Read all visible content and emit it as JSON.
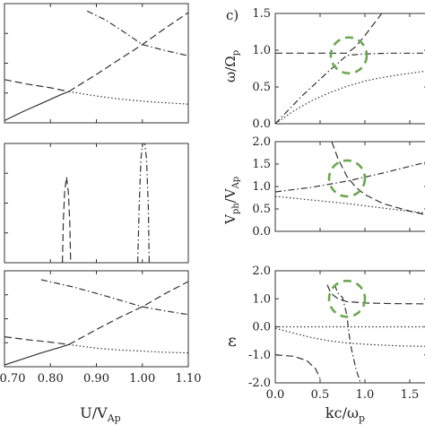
{
  "chart_data": [
    {
      "type": "line",
      "panel": "left-top",
      "xlim": [
        0.7,
        1.1
      ],
      "ylim": [
        0,
        1.6
      ],
      "series": [
        {
          "style": "solid",
          "x": [
            0.7,
            0.74,
            0.78,
            0.82,
            0.84
          ],
          "y": [
            0.03,
            0.15,
            0.26,
            0.37,
            0.42
          ]
        },
        {
          "style": "dotted",
          "x": [
            0.84,
            0.9,
            0.95,
            1.0,
            1.05,
            1.1
          ],
          "y": [
            0.42,
            0.36,
            0.32,
            0.29,
            0.27,
            0.25
          ]
        },
        {
          "style": "dashed",
          "x": [
            0.7,
            0.75,
            0.8,
            0.84
          ],
          "y": [
            0.58,
            0.52,
            0.47,
            0.42
          ]
        },
        {
          "style": "dashed",
          "x": [
            0.84,
            0.9,
            0.95,
            1.0,
            1.05,
            1.1
          ],
          "y": [
            0.42,
            0.65,
            0.85,
            1.05,
            1.27,
            1.48
          ]
        },
        {
          "style": "dashdot",
          "x": [
            0.88,
            0.92,
            0.96,
            1.0
          ],
          "y": [
            1.5,
            1.38,
            1.22,
            1.05
          ]
        },
        {
          "style": "dashdot",
          "x": [
            1.0,
            1.05,
            1.1
          ],
          "y": [
            1.05,
            0.97,
            0.9
          ]
        }
      ]
    },
    {
      "type": "line",
      "panel": "left-middle",
      "xlim": [
        0.7,
        1.1
      ],
      "ylim": [
        0,
        1.6
      ],
      "series": [
        {
          "style": "dashed",
          "x": [
            0.826,
            0.828,
            0.831,
            0.835,
            0.839,
            0.842,
            0.844
          ],
          "y": [
            0.0,
            0.55,
            0.95,
            1.15,
            0.95,
            0.55,
            0.0
          ]
        },
        {
          "style": "dashdot",
          "x": [
            0.99,
            0.993,
            0.997,
            1.003,
            1.009,
            1.013,
            1.015
          ],
          "y": [
            0.0,
            0.75,
            1.4,
            1.7,
            1.4,
            0.75,
            0.0
          ]
        }
      ]
    },
    {
      "type": "line",
      "panel": "left-bottom",
      "xlim": [
        0.7,
        1.1
      ],
      "ylim": [
        0,
        1.6
      ],
      "series": [
        {
          "style": "solid",
          "x": [
            0.7,
            0.74,
            0.78,
            0.82,
            0.84
          ],
          "y": [
            0.03,
            0.13,
            0.23,
            0.32,
            0.37
          ]
        },
        {
          "style": "dotted",
          "x": [
            0.84,
            0.9,
            0.95,
            1.0,
            1.05,
            1.1
          ],
          "y": [
            0.37,
            0.31,
            0.28,
            0.26,
            0.24,
            0.23
          ]
        },
        {
          "style": "dashed",
          "x": [
            0.7,
            0.75,
            0.8,
            0.84
          ],
          "y": [
            0.5,
            0.45,
            0.41,
            0.37
          ]
        },
        {
          "style": "dashed",
          "x": [
            0.84,
            0.9,
            0.95,
            1.0,
            1.05,
            1.1
          ],
          "y": [
            0.37,
            0.62,
            0.82,
            1.0,
            1.22,
            1.42
          ]
        },
        {
          "style": "dashdot",
          "x": [
            0.78,
            0.85,
            0.92,
            1.0
          ],
          "y": [
            1.45,
            1.33,
            1.18,
            1.0
          ]
        },
        {
          "style": "dashdot",
          "x": [
            1.0,
            1.05,
            1.1
          ],
          "y": [
            1.0,
            0.93,
            0.87
          ]
        }
      ]
    },
    {
      "type": "line",
      "panel": "right-top",
      "xlim": [
        0,
        1.7
      ],
      "ylim": [
        0,
        1.5
      ],
      "ylabel": "ω/Ω_p",
      "yticks": [
        "0.0",
        "0.5",
        "1.0",
        "1.5"
      ],
      "series": [
        {
          "style": "dashed",
          "x": [
            0.0,
            0.8,
            0.9,
            1.0,
            1.1,
            1.2
          ],
          "y": [
            0.96,
            0.96,
            1.05,
            1.2,
            1.36,
            1.52
          ]
        },
        {
          "style": "dashdot",
          "x": [
            0.0,
            0.3,
            0.6,
            0.8,
            1.0,
            1.3,
            1.7
          ],
          "y": [
            0.0,
            0.38,
            0.72,
            0.93,
            0.95,
            0.96,
            0.96
          ]
        },
        {
          "style": "dotted",
          "x": [
            0.0,
            0.2,
            0.4,
            0.6,
            0.8,
            1.0,
            1.2,
            1.4,
            1.7
          ],
          "y": [
            0.0,
            0.17,
            0.31,
            0.42,
            0.51,
            0.58,
            0.63,
            0.67,
            0.72
          ]
        }
      ],
      "annotation_center": [
        0.82,
        0.93
      ]
    },
    {
      "type": "line",
      "panel": "right-middle",
      "xlim": [
        0,
        1.7
      ],
      "ylim": [
        0,
        2.0
      ],
      "ylabel": "V_ph/V_Ap",
      "yticks": [
        "0.0",
        "0.5",
        "1.0",
        "1.5",
        "2.0"
      ],
      "series": [
        {
          "style": "dashdot",
          "x": [
            0.0,
            0.4,
            0.8,
            1.2,
            1.7
          ],
          "y": [
            0.88,
            0.98,
            1.12,
            1.3,
            1.55
          ]
        },
        {
          "style": "dashed",
          "x": [
            0.63,
            0.7,
            0.8,
            0.9,
            1.0,
            1.2,
            1.5,
            1.7
          ],
          "y": [
            2.0,
            1.62,
            1.22,
            0.98,
            0.82,
            0.62,
            0.45,
            0.36
          ]
        },
        {
          "style": "dotted",
          "x": [
            0.0,
            0.4,
            0.8,
            1.2,
            1.7
          ],
          "y": [
            0.78,
            0.7,
            0.62,
            0.52,
            0.4
          ]
        }
      ],
      "annotation_center": [
        0.8,
        1.18
      ]
    },
    {
      "type": "line",
      "panel": "right-bottom",
      "xlim": [
        0,
        1.7
      ],
      "ylim": [
        -2.0,
        2.0
      ],
      "xlabel": "kc/ω_p",
      "ylabel": "ε",
      "xticks": [
        "0.0",
        "0.5",
        "1.0",
        "1.5"
      ],
      "yticks": [
        "-2.0",
        "-1.0",
        "0.0",
        "1.0",
        "2.0"
      ],
      "series": [
        {
          "style": "dotted",
          "x": [
            0.0,
            1.7
          ],
          "y": [
            0.0,
            0.0
          ]
        },
        {
          "style": "dashed",
          "x": [
            0.0,
            0.2,
            0.35,
            0.45,
            0.5
          ],
          "y": [
            -1.0,
            -1.05,
            -1.2,
            -1.5,
            -1.85
          ]
        },
        {
          "style": "dashed",
          "x": [
            0.58,
            0.62,
            0.7,
            0.8,
            1.0,
            1.3,
            1.7
          ],
          "y": [
            1.5,
            1.2,
            1.0,
            0.9,
            0.85,
            0.83,
            0.82
          ]
        },
        {
          "style": "dashdot",
          "x": [
            0.66,
            0.7,
            0.75,
            0.8,
            0.82,
            0.85,
            0.9,
            0.95
          ],
          "y": [
            1.5,
            1.2,
            1.05,
            0.4,
            -0.2,
            -0.8,
            -1.5,
            -2.0
          ]
        },
        {
          "style": "dotted",
          "x": [
            0.0,
            0.2,
            0.4,
            0.6,
            0.8,
            1.1,
            1.4,
            1.7
          ],
          "y": [
            -0.05,
            -0.22,
            -0.38,
            -0.5,
            -0.58,
            -0.64,
            -0.68,
            -0.7
          ]
        }
      ],
      "annotation_center": [
        0.8,
        1.0
      ]
    }
  ],
  "left_x_axis": {
    "ticks": [
      "0.70",
      "0.80",
      "0.90",
      "1.00",
      "1.10"
    ],
    "label": "U/V_Ap"
  },
  "panel_letter": "c)",
  "colors": {
    "curve": "#333333",
    "ring": "#6aa84f"
  }
}
